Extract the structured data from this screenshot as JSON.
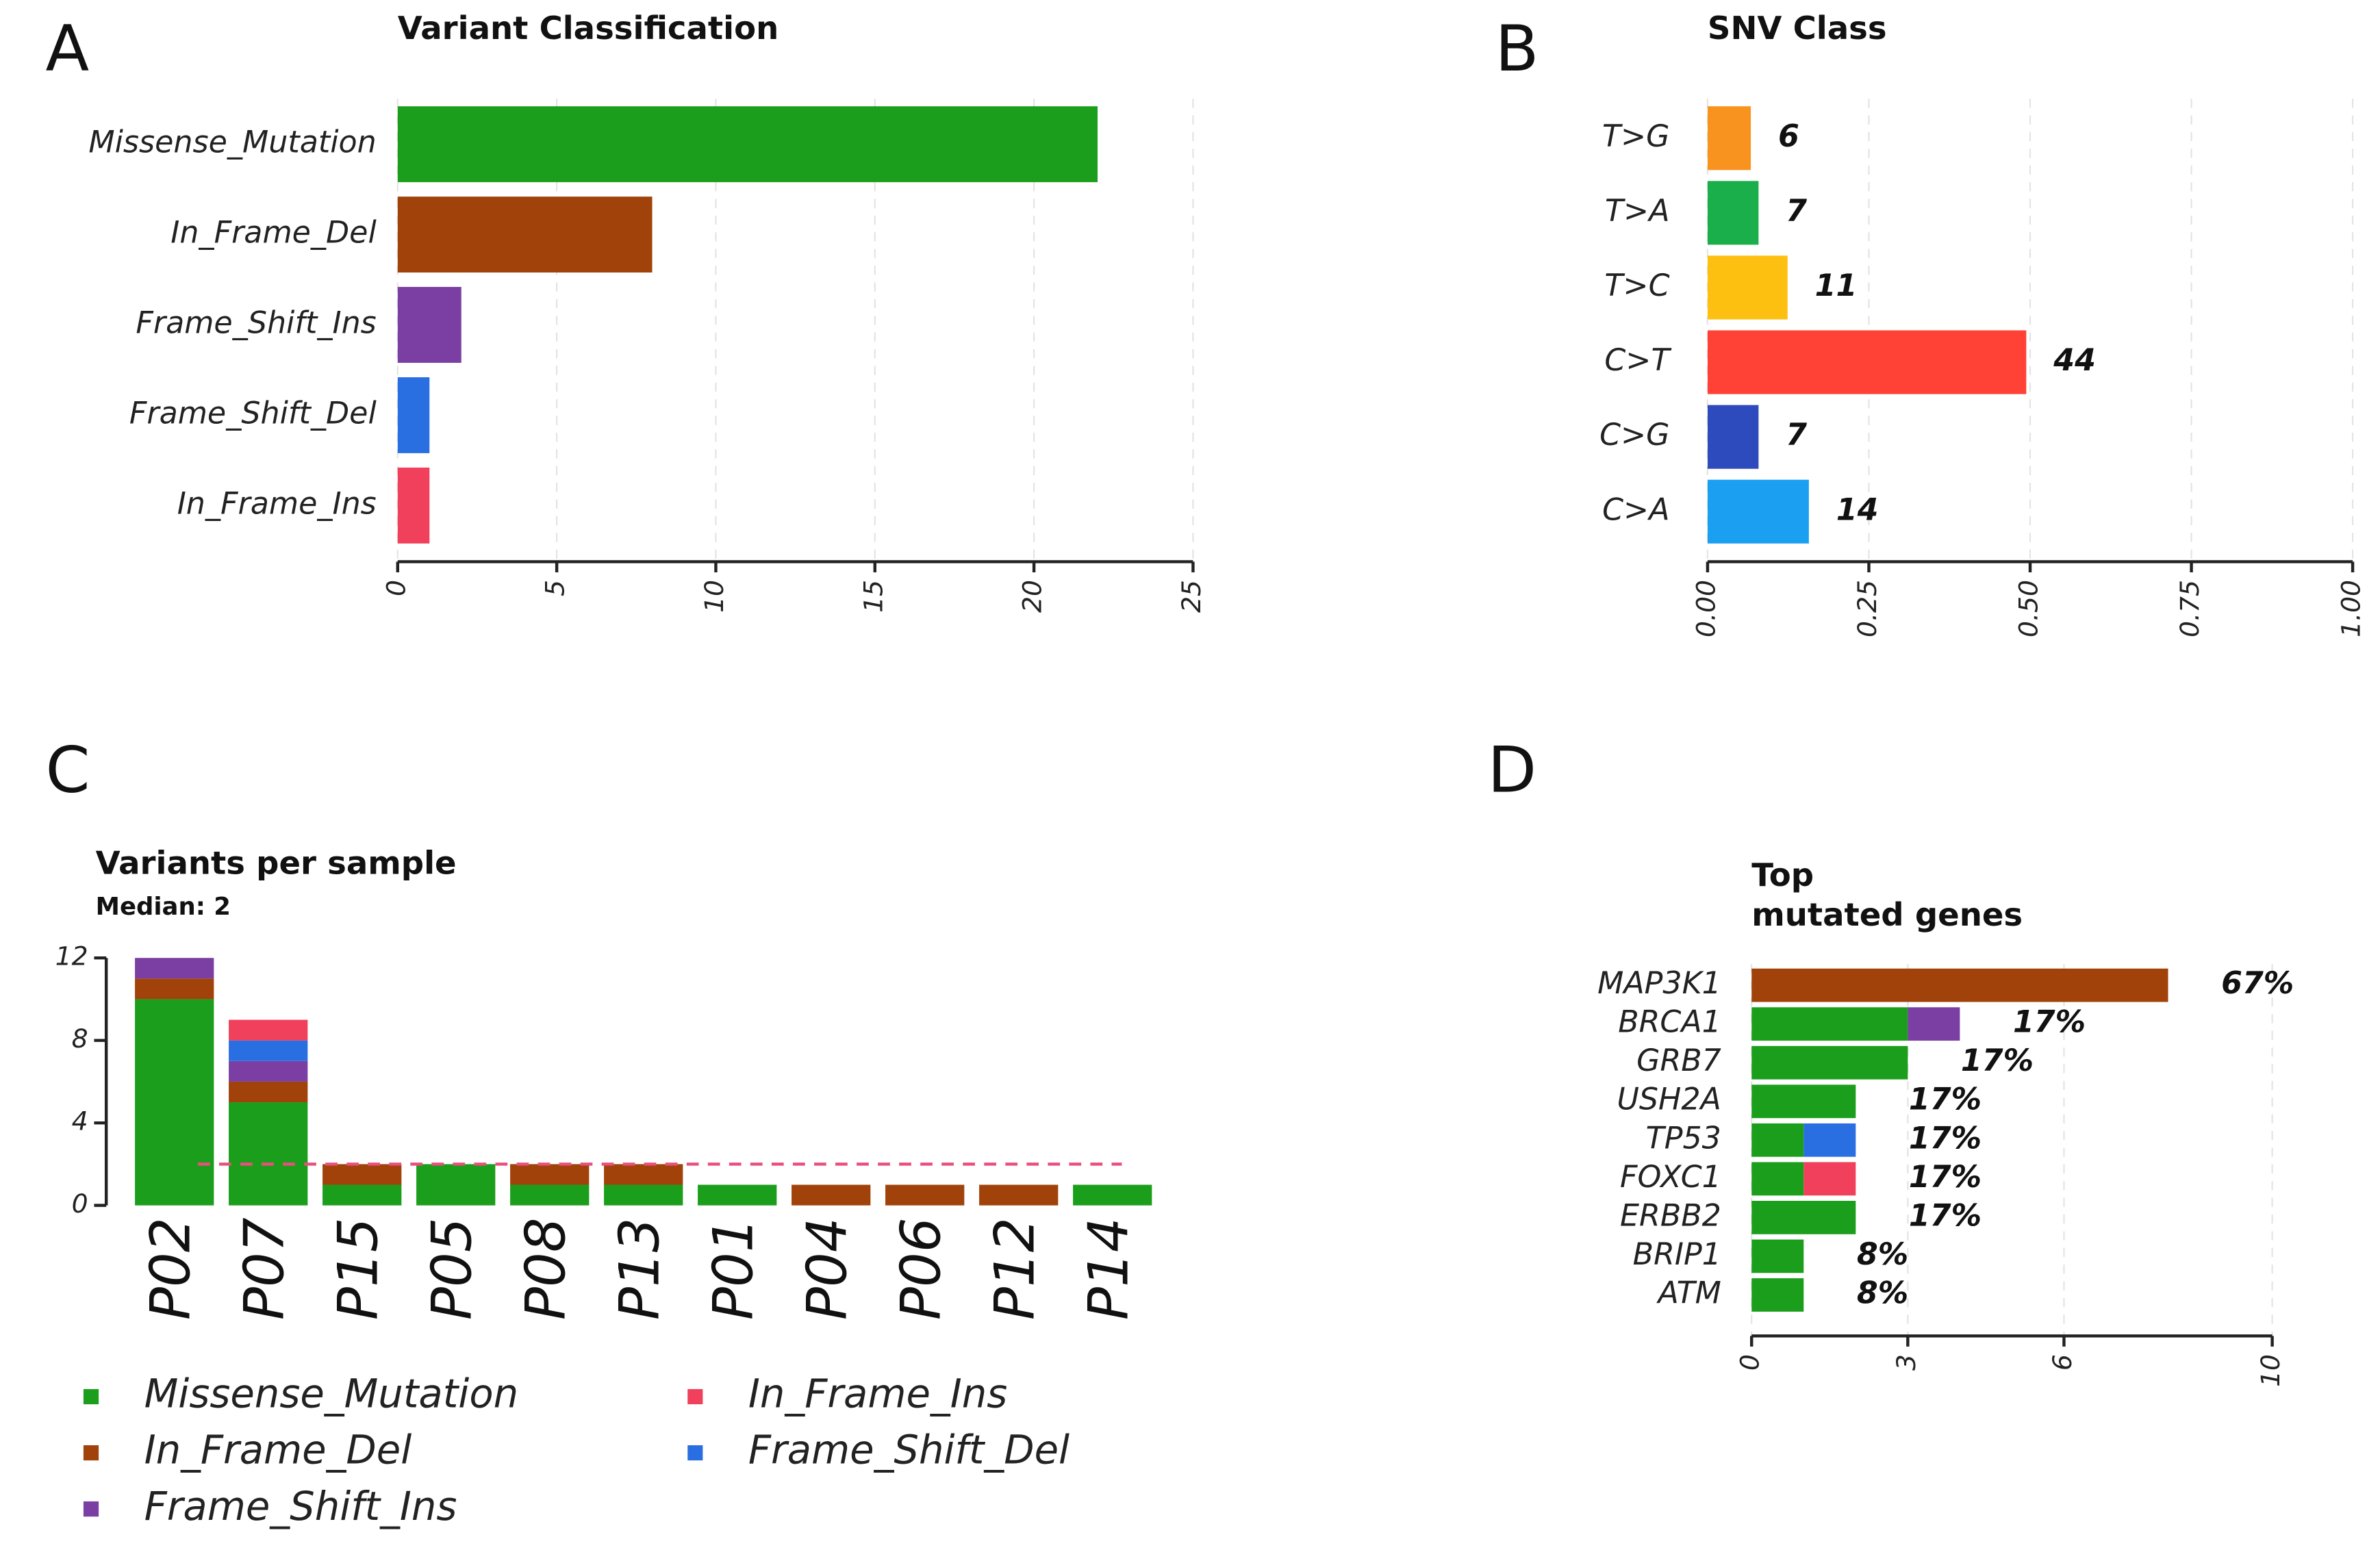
{
  "chart_data": [
    {
      "type": "hbar",
      "panel": "A",
      "title": "Variant Classification",
      "categories": [
        "Missense_Mutation",
        "In_Frame_Del",
        "Frame_Shift_Ins",
        "Frame_Shift_Del",
        "In_Frame_Ins"
      ],
      "values": [
        22,
        8,
        2,
        1,
        1
      ],
      "colors": [
        "#1b9e1b",
        "#a0420a",
        "#7b3fa3",
        "#2a6fe2",
        "#f0405c"
      ],
      "xlim": [
        0,
        25
      ],
      "xticks": [
        0,
        5,
        10,
        15,
        20,
        25
      ],
      "grid": true
    },
    {
      "type": "hbar",
      "panel": "B",
      "title": "SNV Class",
      "categories": [
        "T>G",
        "T>A",
        "T>C",
        "C>T",
        "C>G",
        "C>A"
      ],
      "values": [
        0.067,
        0.079,
        0.124,
        0.494,
        0.079,
        0.157
      ],
      "counts": [
        6,
        7,
        11,
        44,
        7,
        14
      ],
      "colors": [
        "#f7931e",
        "#1aaf4b",
        "#fdc010",
        "#ff4136",
        "#2e4bbd",
        "#1b9ff0"
      ],
      "xlim": [
        0,
        1
      ],
      "xticks": [
        {
          "value": 0,
          "label": "0.00"
        },
        {
          "value": 0.25,
          "label": "0.25"
        },
        {
          "value": 0.5,
          "label": "0.50"
        },
        {
          "value": 0.75,
          "label": "0.75"
        },
        {
          "value": 1,
          "label": "1.00"
        }
      ],
      "grid": true
    },
    {
      "type": "stacked_bar",
      "panel": "C",
      "title": "Variants per sample",
      "subtitle": "Median: 2",
      "median": 2,
      "median_color": "#e8507e",
      "categories": [
        "P02",
        "P07",
        "P15",
        "P05",
        "P08",
        "P13",
        "P01",
        "P04",
        "P06",
        "P12",
        "P14"
      ],
      "series": [
        {
          "name": "Missense_Mutation",
          "color": "#1b9e1b",
          "values": [
            10,
            5,
            1,
            2,
            1,
            1,
            1,
            0,
            0,
            0,
            1
          ]
        },
        {
          "name": "In_Frame_Del",
          "color": "#a0420a",
          "values": [
            1,
            1,
            1,
            0,
            1,
            1,
            0,
            1,
            1,
            1,
            0
          ]
        },
        {
          "name": "Frame_Shift_Ins",
          "color": "#7b3fa3",
          "values": [
            1,
            1,
            0,
            0,
            0,
            0,
            0,
            0,
            0,
            0,
            0
          ]
        },
        {
          "name": "Frame_Shift_Del",
          "color": "#2a6fe2",
          "values": [
            0,
            1,
            0,
            0,
            0,
            0,
            0,
            0,
            0,
            0,
            0
          ]
        },
        {
          "name": "In_Frame_Ins",
          "color": "#f0405c",
          "values": [
            0,
            1,
            0,
            0,
            0,
            0,
            0,
            0,
            0,
            0,
            0
          ]
        }
      ],
      "ylim": [
        0,
        12
      ],
      "yticks": [
        0,
        4,
        8,
        12
      ],
      "grid": false
    },
    {
      "type": "stacked_hbar",
      "panel": "D",
      "title": [
        "Top",
        "mutated genes"
      ],
      "categories": [
        "MAP3K1",
        "BRCA1",
        "GRB7",
        "USH2A",
        "TP53",
        "FOXC1",
        "ERBB2",
        "BRIP1",
        "ATM"
      ],
      "series": [
        {
          "color": "#1b9e1b",
          "values": [
            0,
            3,
            3,
            2,
            1,
            1,
            2,
            1,
            1
          ]
        },
        {
          "color": "#a0420a",
          "values": [
            8,
            0,
            0,
            0,
            0,
            0,
            0,
            0,
            0
          ]
        },
        {
          "color": "#7b3fa3",
          "values": [
            0,
            1,
            0,
            0,
            0,
            0,
            0,
            0,
            0
          ]
        },
        {
          "color": "#2a6fe2",
          "values": [
            0,
            0,
            0,
            0,
            1,
            0,
            0,
            0,
            0
          ]
        },
        {
          "color": "#f0405c",
          "values": [
            0,
            0,
            0,
            0,
            0,
            1,
            0,
            0,
            0
          ]
        }
      ],
      "percent_labels": [
        "67%",
        "17%",
        "17%",
        "17%",
        "17%",
        "17%",
        "17%",
        "8%",
        "8%"
      ],
      "xlim": [
        0,
        10
      ],
      "xticks": [
        0,
        3,
        6,
        10
      ],
      "grid": true
    }
  ]
}
